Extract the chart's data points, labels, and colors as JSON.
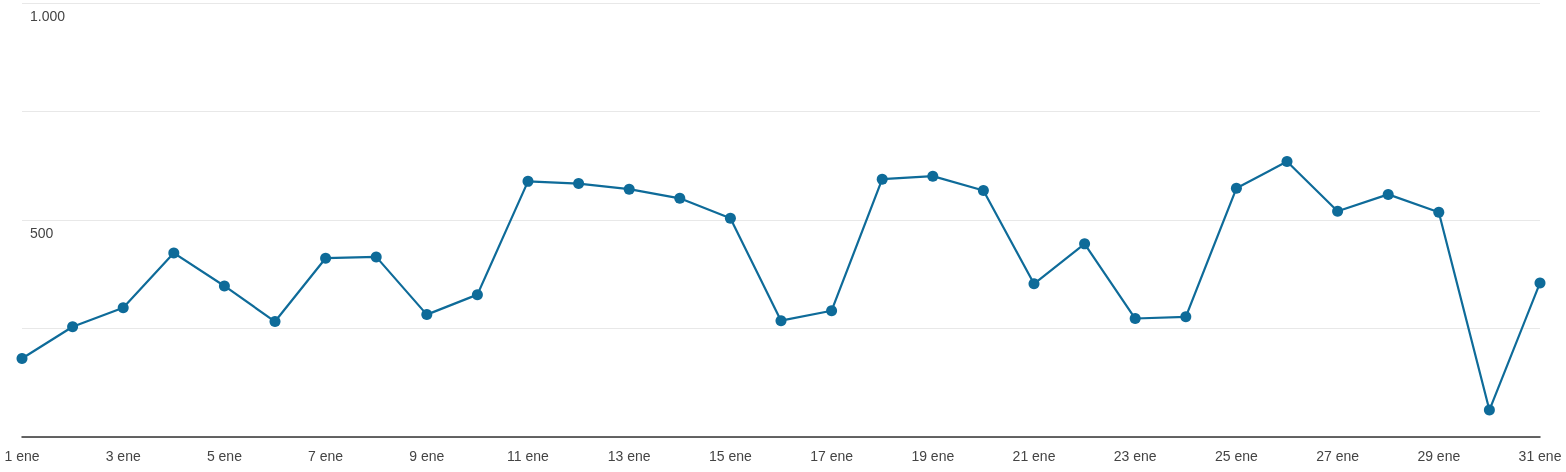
{
  "chart_data": {
    "type": "line",
    "categories": [
      "1 ene",
      null,
      "3 ene",
      null,
      "5 ene",
      null,
      "7 ene",
      null,
      "9 ene",
      null,
      "11 ene",
      null,
      "13 ene",
      null,
      "15 ene",
      null,
      "17 ene",
      null,
      "19 ene",
      null,
      "21 ene",
      null,
      "23 ene",
      null,
      "25 ene",
      null,
      "27 ene",
      null,
      "29 ene",
      null,
      "31 ene"
    ],
    "series": [
      {
        "color": "#0e6b99",
        "values": [
          181,
          254,
          298,
          424,
          348,
          266,
          412,
          415,
          282,
          328,
          589,
          584,
          571,
          550,
          504,
          268,
          291,
          594,
          601,
          568,
          353,
          445,
          273,
          277,
          573,
          635,
          520,
          559,
          518,
          62,
          355
        ]
      }
    ],
    "ylim": [
      0,
      1000
    ],
    "yticks": [
      {
        "value": 0,
        "label": null
      },
      {
        "value": 250,
        "label": null
      },
      500,
      {
        "value": 750,
        "label": null
      },
      {
        "value": 1000,
        "label": "1.000"
      }
    ],
    "grid": "y",
    "marker": "circle",
    "line_style": "solid"
  }
}
